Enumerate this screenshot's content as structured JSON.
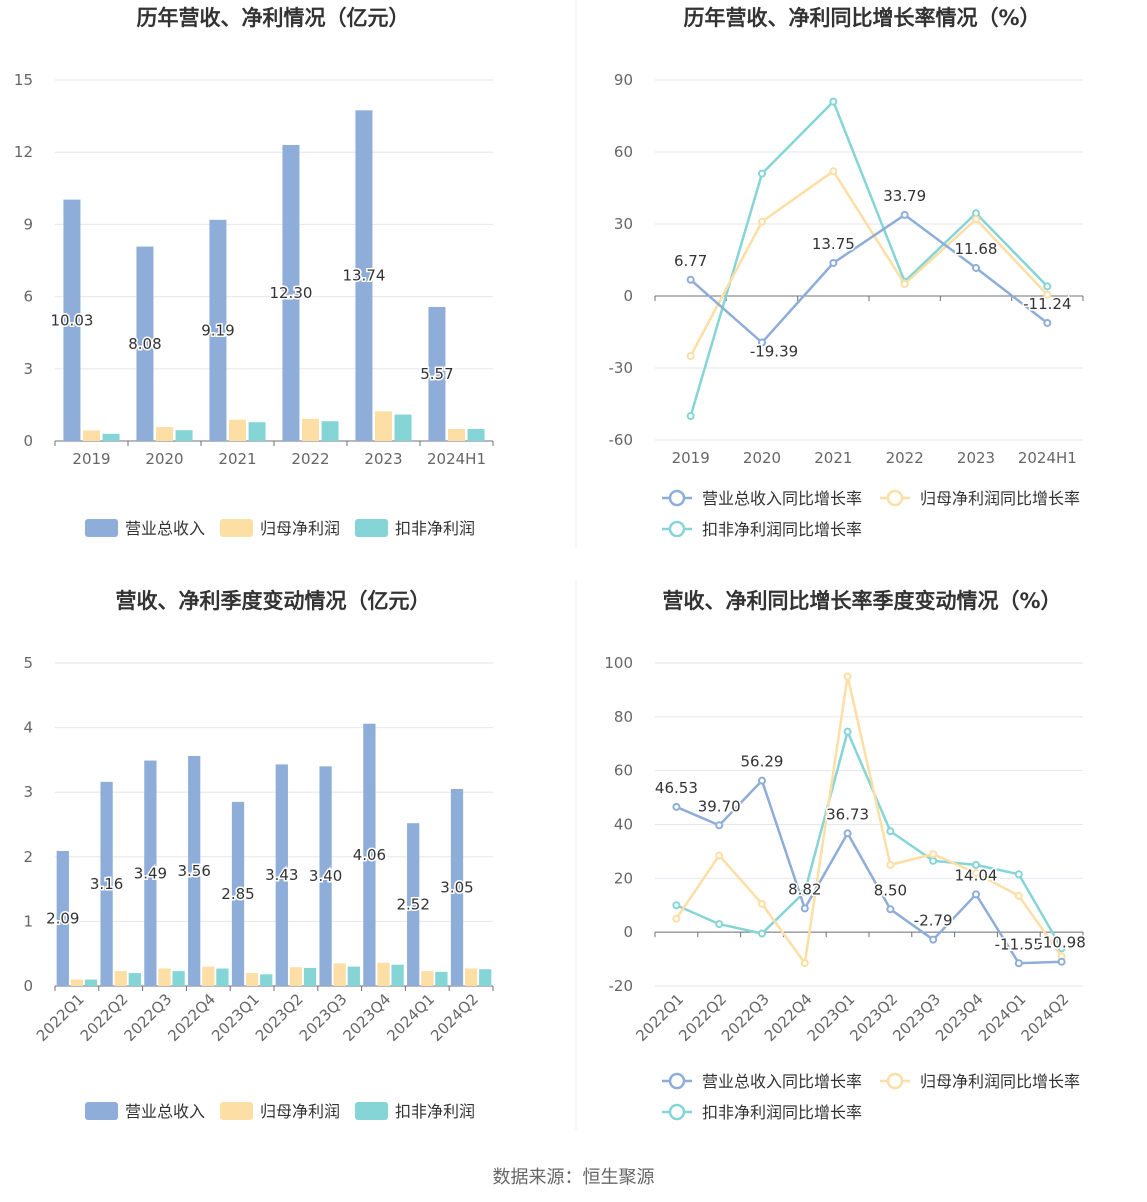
{
  "colors": {
    "revenue": "#8eadd9",
    "net_profit": "#fddea4",
    "deducted_profit": "#85d5d6",
    "line_revenue": "#8eadd9",
    "line_net": "#fddea4",
    "line_deducted": "#85d5d6",
    "grid": "#e6e6ee",
    "axis_text": "#666666",
    "title": "#333333"
  },
  "source": "数据来源：恒生聚源",
  "chart_data": [
    {
      "type": "bar",
      "title": "历年营收、净利情况（亿元）",
      "categories": [
        "2019",
        "2020",
        "2021",
        "2022",
        "2023",
        "2024H1"
      ],
      "ylim": [
        0,
        15
      ],
      "yticks": [
        0,
        3,
        6,
        9,
        12,
        15
      ],
      "series": [
        {
          "name": "营业总收入",
          "values": [
            10.03,
            8.08,
            9.19,
            12.3,
            13.74,
            5.57
          ],
          "labels": [
            "10.03",
            "8.08",
            "9.19",
            "12.30",
            "13.74",
            "5.57"
          ]
        },
        {
          "name": "归母净利润",
          "values": [
            0.44,
            0.58,
            0.88,
            0.92,
            1.23,
            0.5
          ]
        },
        {
          "name": "扣非净利润",
          "values": [
            0.3,
            0.45,
            0.78,
            0.82,
            1.1,
            0.5
          ]
        }
      ]
    },
    {
      "type": "line",
      "title": "历年营收、净利同比增长率情况（%）",
      "categories": [
        "2019",
        "2020",
        "2021",
        "2022",
        "2023",
        "2024H1"
      ],
      "ylim": [
        -60,
        90
      ],
      "yticks": [
        -60,
        -30,
        0,
        30,
        60,
        90
      ],
      "series": [
        {
          "name": "营业总收入同比增长率",
          "values": [
            6.77,
            -19.39,
            13.75,
            33.79,
            11.68,
            -11.24
          ],
          "labels": [
            "6.77",
            "-19.39",
            "13.75",
            "33.79",
            "11.68",
            "-11.24"
          ]
        },
        {
          "name": "归母净利润同比增长率",
          "values": [
            -25.0,
            31.0,
            52.0,
            5.0,
            32.0,
            0.5
          ]
        },
        {
          "name": "扣非净利润同比增长率",
          "values": [
            -50.0,
            51.0,
            81.0,
            6.0,
            34.5,
            4.0
          ]
        }
      ]
    },
    {
      "type": "bar",
      "title": "营收、净利季度变动情况（亿元）",
      "categories": [
        "2022Q1",
        "2022Q2",
        "2022Q3",
        "2022Q4",
        "2023Q1",
        "2023Q2",
        "2023Q3",
        "2023Q4",
        "2024Q1",
        "2024Q2"
      ],
      "ylim": [
        0,
        5
      ],
      "yticks": [
        0,
        1,
        2,
        3,
        4,
        5
      ],
      "series": [
        {
          "name": "营业总收入",
          "values": [
            2.09,
            3.16,
            3.49,
            3.56,
            2.85,
            3.43,
            3.4,
            4.06,
            2.52,
            3.05
          ],
          "labels": [
            "2.09",
            "3.16",
            "3.49",
            "3.56",
            "2.85",
            "3.43",
            "3.40",
            "4.06",
            "2.52",
            "3.05"
          ]
        },
        {
          "name": "归母净利润",
          "values": [
            0.1,
            0.23,
            0.27,
            0.3,
            0.2,
            0.29,
            0.35,
            0.36,
            0.23,
            0.27
          ]
        },
        {
          "name": "扣非净利润",
          "values": [
            0.1,
            0.2,
            0.23,
            0.27,
            0.18,
            0.28,
            0.3,
            0.33,
            0.22,
            0.26
          ]
        }
      ]
    },
    {
      "type": "line",
      "title": "营收、净利同比增长率季度变动情况（%）",
      "categories": [
        "2022Q1",
        "2022Q2",
        "2022Q3",
        "2022Q4",
        "2023Q1",
        "2023Q2",
        "2023Q3",
        "2023Q4",
        "2024Q1",
        "2024Q2"
      ],
      "ylim": [
        -20,
        100
      ],
      "yticks": [
        -20,
        0,
        20,
        40,
        60,
        80,
        100
      ],
      "series": [
        {
          "name": "营业总收入同比增长率",
          "values": [
            46.53,
            39.7,
            56.29,
            8.82,
            36.73,
            8.5,
            -2.79,
            14.04,
            -11.55,
            -10.98
          ],
          "labels": [
            "46.53",
            "39.70",
            "56.29",
            "8.82",
            "36.73",
            "8.50",
            "-2.79",
            "14.04",
            "-11.55",
            "-10.98"
          ]
        },
        {
          "name": "归母净利润同比增长率",
          "values": [
            5.0,
            28.5,
            10.5,
            -11.5,
            95.0,
            25.0,
            29.0,
            22.0,
            13.5,
            -9.0
          ]
        },
        {
          "name": "扣非净利润同比增长率",
          "values": [
            10.0,
            3.0,
            -0.5,
            15.0,
            74.5,
            37.5,
            26.5,
            25.0,
            21.5,
            -6.0
          ]
        }
      ]
    }
  ]
}
